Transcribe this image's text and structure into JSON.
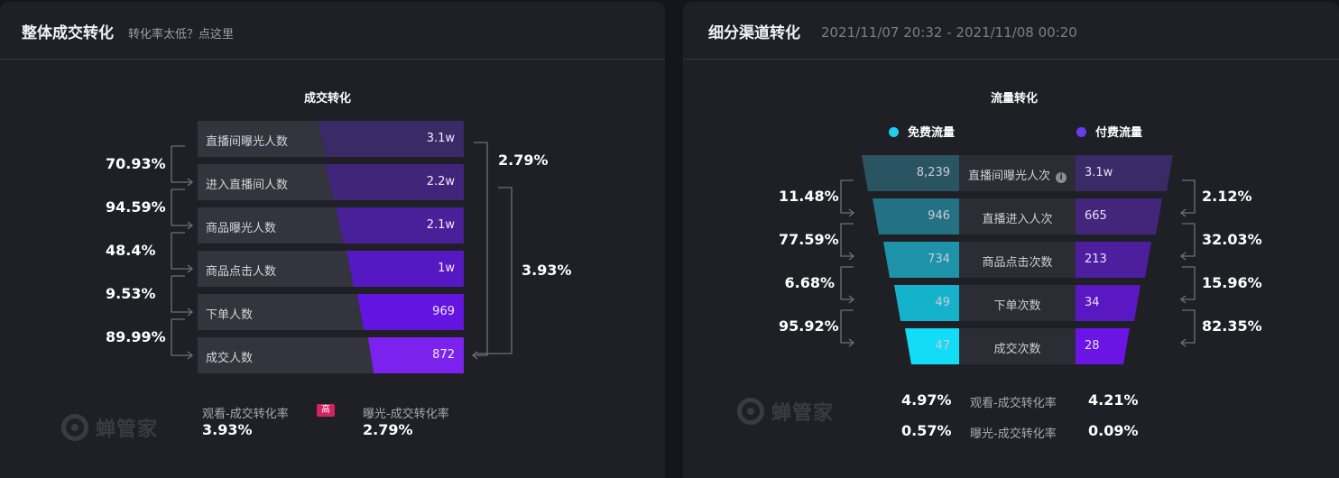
{
  "left_panel": {
    "title": "整体成交转化",
    "help_link": "转化率太低？点这里",
    "chart_title": "成交转化",
    "funnel": [
      {
        "label": "直播间曝光人数",
        "value": "3.1w",
        "fill": 0.55,
        "color": "#3a2a66"
      },
      {
        "label": "进入直播间人数",
        "value": "2.2w",
        "fill": 0.52,
        "color": "#40257a"
      },
      {
        "label": "商品曝光人数",
        "value": "2.1w",
        "fill": 0.48,
        "color": "#4a1f9a"
      },
      {
        "label": "商品点击人数",
        "value": "1w",
        "fill": 0.44,
        "color": "#5618c2"
      },
      {
        "label": "下单人数",
        "value": "969",
        "fill": 0.4,
        "color": "#6414e0"
      },
      {
        "label": "成交人数",
        "value": "872",
        "fill": 0.36,
        "color": "#7b22ee"
      }
    ],
    "step_rates": [
      "70.93%",
      "94.59%",
      "48.4%",
      "9.53%",
      "89.99%"
    ],
    "overall_rates": {
      "exposure_to_deal": "2.79%",
      "click_to_deal": "3.93%"
    },
    "metrics": {
      "watch_label": "观看-成交转化率",
      "watch_value": "3.93%",
      "badge": "高",
      "exposure_label": "曝光-成交转化率",
      "exposure_value": "2.79%"
    },
    "watermark": "蝉管家"
  },
  "right_panel": {
    "title": "细分渠道转化",
    "date_range": "2021/11/07 20:32 - 2021/11/08 00:20",
    "chart_title": "流量转化",
    "legend": [
      {
        "label": "免费流量",
        "color": "#1fd0f0"
      },
      {
        "label": "付费流量",
        "color": "#6a3cf0"
      }
    ],
    "stages": [
      {
        "label": "直播间曝光人次",
        "free": "8,239",
        "paid": "3.1w",
        "free_color": "#2b5462",
        "paid_color": "#3a2a66"
      },
      {
        "label": "直播进入人次",
        "free": "946",
        "paid": "665",
        "free_color": "#237183",
        "paid_color": "#43257c"
      },
      {
        "label": "商品点击次数",
        "free": "734",
        "paid": "213",
        "free_color": "#1d92a8",
        "paid_color": "#4d1f9f"
      },
      {
        "label": "下单次数",
        "free": "49",
        "paid": "34",
        "free_color": "#15b2cc",
        "paid_color": "#5a18c2"
      },
      {
        "label": "成交次数",
        "free": "47",
        "paid": "28",
        "free_color": "#12dcf6",
        "paid_color": "#6a14e6"
      }
    ],
    "free_rates": [
      "11.48%",
      "77.59%",
      "6.68%",
      "95.92%"
    ],
    "paid_rates": [
      "2.12%",
      "32.03%",
      "15.96%",
      "82.35%"
    ],
    "summary": [
      {
        "free": "4.97%",
        "label": "观看-成交转化率",
        "paid": "4.21%"
      },
      {
        "free": "0.57%",
        "label": "曝光-成交转化率",
        "paid": "0.09%"
      }
    ],
    "watermark": "蝉管家"
  }
}
